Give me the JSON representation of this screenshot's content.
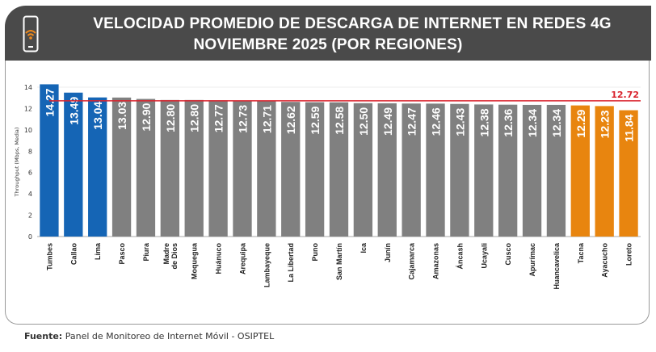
{
  "header": {
    "title_line1": "VELOCIDAD PROMEDIO DE DESCARGA DE INTERNET EN REDES 4G",
    "title_line2": "NOVIEMBRE 2025 (POR REGIONES)",
    "icon": "phone-wifi-icon"
  },
  "source": {
    "label": "Fuente:",
    "text": "Panel de Monitoreo de Internet Móvil - OSIPTEL"
  },
  "chart_data": {
    "type": "bar",
    "title": "",
    "xlabel": "",
    "ylabel": "Throughput (Mbps, Media)",
    "ylim": [
      0,
      14
    ],
    "yticks": [
      0,
      2,
      4,
      6,
      8,
      10,
      12,
      14
    ],
    "grid": false,
    "categories": [
      "Tumbes",
      "Callao",
      "Lima",
      "Pasco",
      "Piura",
      "Madre de Dios",
      "Moquegua",
      "Huánuco",
      "Arequipa",
      "Lambayeque",
      "La Libertad",
      "Puno",
      "San Martín",
      "Ica",
      "Junín",
      "Cajamarca",
      "Amazonas",
      "Áncash",
      "Ucayali",
      "Cusco",
      "Apurímac",
      "Huancavelica",
      "Tacna",
      "Ayacucho",
      "Loreto"
    ],
    "values": [
      14.27,
      13.49,
      13.04,
      13.03,
      12.9,
      12.8,
      12.8,
      12.77,
      12.73,
      12.71,
      12.62,
      12.59,
      12.58,
      12.5,
      12.49,
      12.47,
      12.46,
      12.43,
      12.38,
      12.36,
      12.34,
      12.34,
      12.29,
      12.23,
      11.84
    ],
    "value_labels": [
      "14.27",
      "13.49",
      "13.04",
      "13.03",
      "12.90",
      "12.80",
      "12.80",
      "12.77",
      "12.73",
      "12.71",
      "12.62",
      "12.59",
      "12.58",
      "12.50",
      "12.49",
      "12.47",
      "12.46",
      "12.43",
      "12.38",
      "12.36",
      "12.34",
      "12.34",
      "12.29",
      "12.23",
      "11.84"
    ],
    "bar_groups": [
      "top",
      "top",
      "top",
      "mid",
      "mid",
      "mid",
      "mid",
      "mid",
      "mid",
      "mid",
      "mid",
      "mid",
      "mid",
      "mid",
      "mid",
      "mid",
      "mid",
      "mid",
      "mid",
      "mid",
      "mid",
      "mid",
      "bottom",
      "bottom",
      "bottom"
    ],
    "colors": {
      "top": "#1565b5",
      "mid": "#808080",
      "bottom": "#e8850f",
      "average": "#d9232d"
    },
    "average": {
      "value": 12.72,
      "label": "12.72"
    }
  }
}
